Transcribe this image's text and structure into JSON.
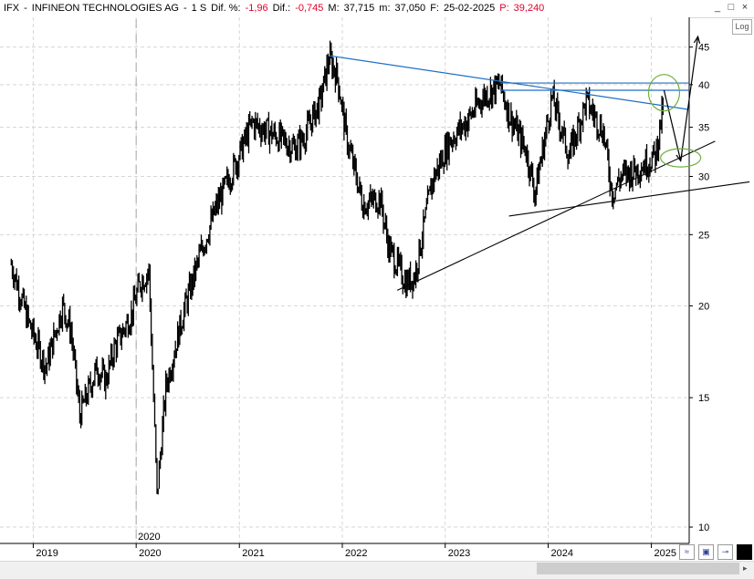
{
  "window": {
    "ticker": "IFX",
    "separator": "-",
    "name": "INFINEON TECHNOLOGIES AG",
    "dash": "-",
    "timeframe": "1 S",
    "dif_pct_label": "Dif. %:",
    "dif_pct_value": "-1,96",
    "dif_label": "Dif.:",
    "dif_value": "-0,745",
    "max_label": "M:",
    "max_value": "37,715",
    "min_label": "m:",
    "min_value": "37,050",
    "date_label": "F:",
    "date_value": "25-02-2025",
    "price_label": "P:",
    "price_value": "39,240",
    "minimize": "_",
    "maximize": "□",
    "close": "×",
    "log_button": "Log"
  },
  "colors": {
    "candles": "#000000",
    "trendline_blue": "#1f6fc5",
    "trendline_black": "#000000",
    "ellipse_green": "#6fae3e",
    "grid": "#d6d6d6",
    "price_red": "#e0002a"
  },
  "chart_data": {
    "type": "line",
    "scale": "log",
    "ylim": [
      9.5,
      48
    ],
    "y_ticks": [
      10,
      15,
      20,
      25,
      30,
      35,
      40,
      45
    ],
    "x_ticks": [
      "2019",
      "2020",
      "2021",
      "2022",
      "2023",
      "2024",
      "2025"
    ],
    "x_marker_label": "2020",
    "grid": true,
    "series": [
      {
        "x": [
          "2018-10",
          "2018-12",
          "2019-02",
          "2019-04",
          "2019-05",
          "2019-06",
          "2019-08",
          "2019-09",
          "2019-10",
          "2019-12",
          "2020-01",
          "2020-02",
          "2020-03",
          "2020-04",
          "2020-06",
          "2020-08",
          "2020-10",
          "2020-12",
          "2021-02",
          "2021-04",
          "2021-05",
          "2021-07",
          "2021-08",
          "2021-10",
          "2021-11",
          "2021-12",
          "2022-01",
          "2022-03",
          "2022-05",
          "2022-06",
          "2022-08",
          "2022-09",
          "2022-11",
          "2023-01",
          "2023-03",
          "2023-05",
          "2023-07",
          "2023-08",
          "2023-10",
          "2023-11",
          "2024-01",
          "2024-02",
          "2024-03",
          "2024-05",
          "2024-07",
          "2024-08",
          "2024-09",
          "2024-11",
          "2025-01",
          "2025-02"
        ],
        "values": [
          22.8,
          19.0,
          16.5,
          20.0,
          18.5,
          14.2,
          16.5,
          15.8,
          17.5,
          19.5,
          21.5,
          22.3,
          11.0,
          15.5,
          19.5,
          23.5,
          27.5,
          31.0,
          35.5,
          34.5,
          34.0,
          32.8,
          33.8,
          38.0,
          43.5,
          41.0,
          34.0,
          27.5,
          28.0,
          24.0,
          21.5,
          22.0,
          29.5,
          33.5,
          35.5,
          38.5,
          40.0,
          36.5,
          32.5,
          28.5,
          38.5,
          35.0,
          32.0,
          38.0,
          34.5,
          28.5,
          30.0,
          30.8,
          32.0,
          38.0
        ]
      }
    ],
    "annotations": {
      "trendlines_blue": [
        {
          "from": [
            "2021-11",
            43.8
          ],
          "to": [
            "2025-05",
            37.0
          ]
        },
        {
          "from": [
            "2023-07",
            40.2
          ],
          "to": [
            "2025-05",
            40.2
          ]
        },
        {
          "from": [
            "2023-07",
            39.3
          ],
          "to": [
            "2025-05",
            39.3
          ]
        }
      ],
      "trendlines_black": [
        {
          "from": [
            "2022-07",
            21.0
          ],
          "to": [
            "2025-08",
            33.5
          ]
        },
        {
          "from": [
            "2023-08",
            26.5
          ],
          "to": [
            "2025-12",
            29.5
          ]
        }
      ],
      "projection": [
        [
          "2025-02",
          39.3
        ],
        [
          "2025-04",
          31.5
        ],
        [
          "2025-06",
          46.5
        ]
      ],
      "ellipses": [
        {
          "center": [
            "2025-02",
            39.0
          ]
        },
        {
          "center": [
            "2025-04",
            31.8
          ]
        }
      ]
    }
  }
}
